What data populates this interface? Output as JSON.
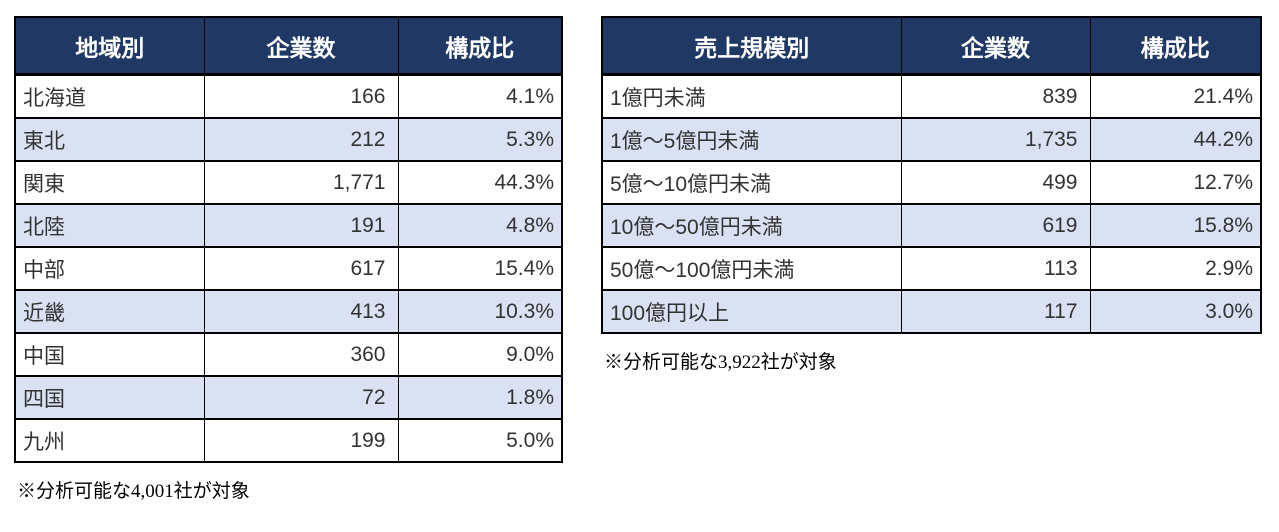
{
  "colors": {
    "header_bg": "#1F3864",
    "header_text": "#FFFFFF",
    "row_alt_bg": "#D9E1F2",
    "row_bg": "#FFFFFF",
    "border": "#000000",
    "cell_text": "#333333"
  },
  "chart_data": [
    {
      "type": "table",
      "name": "region-breakdown",
      "columns": [
        "地域別",
        "企業数",
        "構成比"
      ],
      "rows": [
        [
          "北海道",
          "166",
          "4.1%"
        ],
        [
          "東北",
          "212",
          "5.3%"
        ],
        [
          "関東",
          "1,771",
          "44.3%"
        ],
        [
          "北陸",
          "191",
          "4.8%"
        ],
        [
          "中部",
          "617",
          "15.4%"
        ],
        [
          "近畿",
          "413",
          "10.3%"
        ],
        [
          "中国",
          "360",
          "9.0%"
        ],
        [
          "四国",
          "72",
          "1.8%"
        ],
        [
          "九州",
          "199",
          "5.0%"
        ]
      ],
      "footnote": "※分析可能な4,001社が対象"
    },
    {
      "type": "table",
      "name": "sales-scale-breakdown",
      "columns": [
        "売上規模別",
        "企業数",
        "構成比"
      ],
      "rows": [
        [
          "1億円未満",
          "839",
          "21.4%"
        ],
        [
          "1億〜5億円未満",
          "1,735",
          "44.2%"
        ],
        [
          "5億〜10億円未満",
          "499",
          "12.7%"
        ],
        [
          "10億〜50億円未満",
          "619",
          "15.8%"
        ],
        [
          "50億〜100億円未満",
          "113",
          "2.9%"
        ],
        [
          "100億円以上",
          "117",
          "3.0%"
        ]
      ],
      "footnote": "※分析可能な3,922社が対象"
    }
  ]
}
